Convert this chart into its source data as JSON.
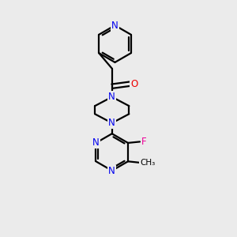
{
  "background_color": "#ebebeb",
  "bond_color": "#000000",
  "N_color": "#0000ee",
  "O_color": "#ee0000",
  "F_color": "#ee0099",
  "line_width": 1.6,
  "font_size": 8.5,
  "figsize": [
    3.0,
    3.0
  ],
  "dpi": 100,
  "xlim": [
    0,
    10
  ],
  "ylim": [
    0,
    10
  ]
}
